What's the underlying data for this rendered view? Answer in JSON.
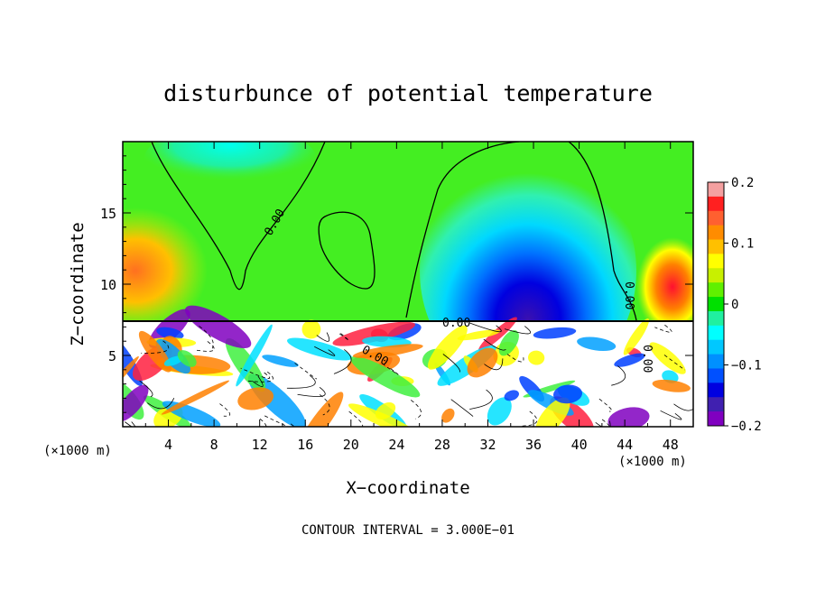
{
  "chart_data": {
    "type": "heatmap",
    "title": "disturbunce of potential temperature",
    "xlabel": "X−coordinate",
    "ylabel": "Z−coordinate",
    "x_unit": "(×1000 m)",
    "x_unit_bottom": "(×1000 m)",
    "footer": "CONTOUR INTERVAL = 3.000E−01",
    "xlim": [
      0,
      50
    ],
    "ylim": [
      0,
      20
    ],
    "x_ticks": [
      4,
      8,
      12,
      16,
      20,
      24,
      28,
      32,
      36,
      40,
      44,
      48
    ],
    "y_ticks": [
      5,
      10,
      15
    ],
    "contour_labels": [
      "0.00",
      "0.00",
      "0.00",
      "0.00",
      "0.00"
    ],
    "colorbar": {
      "min": -0.2,
      "max": 0.2,
      "tick_values": [
        0.2,
        0.1,
        0,
        -0.1,
        -0.2
      ],
      "tick_labels": [
        "0.2",
        "0.1",
        "0",
        "−0.1",
        "−0.2"
      ],
      "colors": [
        "#f4a0a0",
        "#ff2020",
        "#ff6030",
        "#ff8c00",
        "#ffc000",
        "#ffff00",
        "#c8f000",
        "#60f000",
        "#00e000",
        "#20f0a0",
        "#00ffff",
        "#00c8ff",
        "#0090ff",
        "#0050ff",
        "#0000e0",
        "#4020b0",
        "#8000c0"
      ]
    }
  }
}
